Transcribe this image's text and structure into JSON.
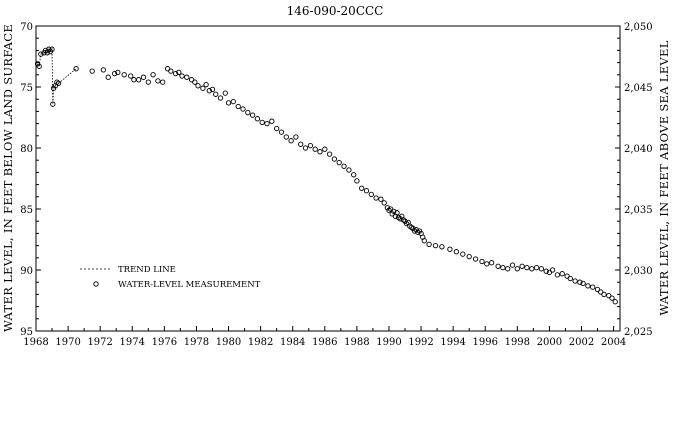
{
  "chart_data": {
    "type": "scatter",
    "title": "146-090-20CCC",
    "xlabel": "",
    "ylabel": "WATER LEVEL, IN FEET BELOW LAND SURFACE",
    "ylabel_right": "WATER LEVEL, IN FEET ABOVE SEA LEVEL",
    "xlim": [
      1968,
      2004.4
    ],
    "ylim": [
      95,
      70
    ],
    "ylim_right": [
      2025,
      2050
    ],
    "y_inverted": true,
    "grid": false,
    "legend_position": "bottom-left",
    "x_ticks": [
      1968,
      1970,
      1972,
      1974,
      1976,
      1978,
      1980,
      1982,
      1984,
      1986,
      1988,
      1990,
      1992,
      1994,
      1996,
      1998,
      2000,
      2002,
      2004
    ],
    "x_tick_labels": [
      "1968",
      "1970",
      "1972",
      "1974",
      "1976",
      "1978",
      "1980",
      "1982",
      "1984",
      "1986",
      "1988",
      "1990",
      "1992",
      "1994",
      "1996",
      "1998",
      "2000",
      "2002",
      "2004"
    ],
    "y_ticks": [
      70,
      75,
      80,
      85,
      90,
      95
    ],
    "y_tick_labels": [
      "70",
      "75",
      "80",
      "85",
      "90",
      "95"
    ],
    "y_ticks_right": [
      2050,
      2045,
      2040,
      2035,
      2030,
      2025
    ],
    "y_tick_labels_right": [
      "2,050",
      "2,045",
      "2,040",
      "2,035",
      "2,030",
      "2,025"
    ],
    "series": [
      {
        "name": "TREND LINE",
        "style": "dotted-line",
        "x": [
          1968.1,
          1968.2,
          1968.3,
          1968.5,
          1968.6,
          1968.7,
          1968.8,
          1968.9,
          1969.0,
          1969.05,
          1969.1,
          1969.2,
          1969.3,
          1969.4,
          1970.5
        ],
        "y": [
          73.1,
          73.3,
          72.3,
          72.2,
          72.0,
          72.2,
          71.9,
          72.1,
          71.9,
          76.4,
          75.1,
          74.9,
          74.6,
          74.7,
          73.5
        ]
      },
      {
        "name": "WATER-LEVEL MEASUREMENT",
        "style": "open-circle",
        "x": [
          1968.1,
          1968.2,
          1968.3,
          1968.5,
          1968.6,
          1968.7,
          1968.8,
          1968.9,
          1969.0,
          1969.05,
          1969.1,
          1969.2,
          1969.3,
          1969.4,
          1970.5,
          1971.5,
          1972.2,
          1972.5,
          1972.9,
          1973.1,
          1973.5,
          1973.9,
          1974.1,
          1974.4,
          1974.7,
          1975.0,
          1975.3,
          1975.6,
          1975.9,
          1976.2,
          1976.4,
          1976.7,
          1976.9,
          1977.1,
          1977.4,
          1977.7,
          1977.9,
          1978.1,
          1978.4,
          1978.6,
          1978.8,
          1979.0,
          1979.2,
          1979.5,
          1979.8,
          1980.0,
          1980.3,
          1980.6,
          1980.9,
          1981.2,
          1981.5,
          1981.8,
          1982.1,
          1982.4,
          1982.7,
          1983.0,
          1983.3,
          1983.6,
          1983.9,
          1984.2,
          1984.5,
          1984.8,
          1985.1,
          1985.4,
          1985.7,
          1986.0,
          1986.3,
          1986.6,
          1986.9,
          1987.2,
          1987.5,
          1987.8,
          1988.0,
          1988.3,
          1988.6,
          1988.9,
          1989.2,
          1989.5,
          1989.7,
          1989.9,
          1990.0,
          1990.1,
          1990.2,
          1990.3,
          1990.4,
          1990.5,
          1990.6,
          1990.7,
          1990.8,
          1990.9,
          1991.0,
          1991.1,
          1991.2,
          1991.3,
          1991.4,
          1991.5,
          1991.6,
          1991.7,
          1991.8,
          1991.9,
          1992.0,
          1992.1,
          1992.2,
          1992.5,
          1992.9,
          1993.3,
          1993.8,
          1994.2,
          1994.6,
          1995.0,
          1995.4,
          1995.8,
          1996.1,
          1996.4,
          1996.8,
          1997.1,
          1997.4,
          1997.7,
          1998.0,
          1998.3,
          1998.6,
          1998.9,
          1999.2,
          1999.5,
          1999.8,
          2000.0,
          2000.2,
          2000.5,
          2000.8,
          2001.1,
          2001.3,
          2001.6,
          2001.9,
          2002.1,
          2002.4,
          2002.7,
          2003.0,
          2003.2,
          2003.4,
          2003.7,
          2003.9,
          2004.1
        ],
        "y": [
          73.1,
          73.3,
          72.3,
          72.2,
          72.0,
          72.2,
          71.9,
          72.1,
          71.9,
          76.4,
          75.1,
          74.9,
          74.6,
          74.7,
          73.5,
          73.7,
          73.6,
          74.2,
          73.9,
          73.8,
          74.0,
          74.1,
          74.4,
          74.4,
          74.2,
          74.6,
          74.0,
          74.5,
          74.6,
          73.5,
          73.7,
          73.9,
          73.8,
          74.1,
          74.2,
          74.4,
          74.6,
          74.9,
          75.1,
          74.8,
          75.3,
          75.2,
          75.6,
          75.9,
          75.5,
          76.3,
          76.2,
          76.6,
          76.8,
          77.1,
          77.3,
          77.6,
          77.9,
          78.0,
          77.8,
          78.4,
          78.7,
          79.1,
          79.4,
          79.1,
          79.7,
          80.0,
          79.8,
          80.1,
          80.3,
          80.1,
          80.5,
          80.9,
          81.2,
          81.5,
          81.8,
          82.2,
          82.7,
          83.3,
          83.5,
          83.8,
          84.1,
          84.2,
          84.5,
          84.9,
          85.1,
          85.0,
          85.4,
          85.2,
          85.6,
          85.3,
          85.7,
          85.8,
          85.6,
          85.9,
          86.0,
          86.2,
          86.1,
          86.4,
          86.5,
          86.6,
          86.8,
          86.7,
          86.9,
          86.8,
          87.0,
          87.3,
          87.6,
          87.9,
          88.0,
          88.1,
          88.3,
          88.5,
          88.7,
          88.9,
          89.1,
          89.3,
          89.5,
          89.4,
          89.7,
          89.8,
          89.9,
          89.6,
          89.9,
          89.7,
          89.8,
          89.9,
          89.8,
          89.9,
          90.1,
          90.2,
          90.0,
          90.4,
          90.3,
          90.5,
          90.7,
          90.9,
          91.0,
          91.1,
          91.3,
          91.4,
          91.6,
          91.8,
          92.0,
          92.1,
          92.3,
          92.6
        ]
      }
    ]
  }
}
